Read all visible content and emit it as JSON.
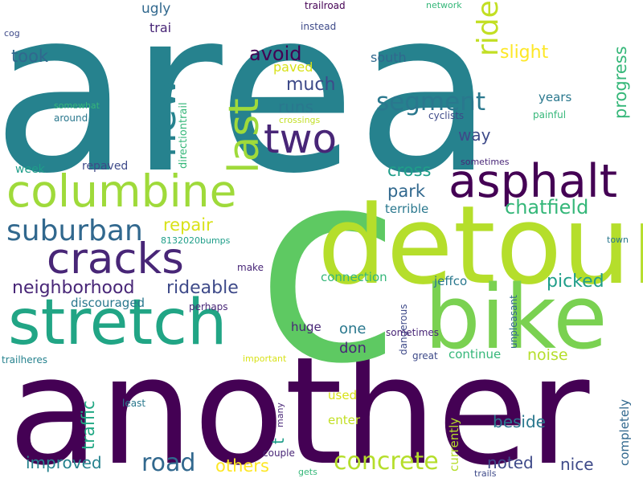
{
  "palette": {
    "dark_purple": "#440154",
    "deep_purple": "#482677",
    "indigo": "#3e4a89",
    "slate_blue": "#31688e",
    "teal_blue": "#26828e",
    "teal": "#1f9e89",
    "green_teal": "#35b779",
    "green": "#6ece58",
    "lime": "#b5de2b",
    "yellow": "#fde725"
  },
  "words": [
    {
      "text": "area",
      "color": "#26828e"
    },
    {
      "text": "another",
      "color": "#440154"
    },
    {
      "text": "c",
      "color": "#5ec962"
    },
    {
      "text": "detour",
      "color": "#b5de2b"
    },
    {
      "text": "bike",
      "color": "#7ad151"
    },
    {
      "text": "stretch",
      "color": "#21a585"
    },
    {
      "text": "two",
      "color": "#482677"
    },
    {
      "text": "asphalt",
      "color": "#440154"
    },
    {
      "text": "columbine",
      "color": "#9fda3a"
    },
    {
      "text": "cracks",
      "color": "#482677"
    },
    {
      "text": "suburban",
      "color": "#31688e"
    },
    {
      "text": "new",
      "color": "#26828e"
    },
    {
      "text": "last",
      "color": "#9fda3a"
    },
    {
      "text": "segment",
      "color": "#2a788e"
    },
    {
      "text": "ride",
      "color": "#c2df23"
    },
    {
      "text": "road",
      "color": "#31688e"
    },
    {
      "text": "concrete",
      "color": "#b5de2b"
    },
    {
      "text": "chatfield",
      "color": "#35b779"
    },
    {
      "text": "neighborhood",
      "color": "#482677"
    },
    {
      "text": "rideable",
      "color": "#3e4a89"
    },
    {
      "text": "avoid",
      "color": "#440154"
    },
    {
      "text": "took",
      "color": "#31688e"
    },
    {
      "text": "much",
      "color": "#3e4a89"
    },
    {
      "text": "runs",
      "color": "#2a788e"
    },
    {
      "text": "slight",
      "color": "#fde725"
    },
    {
      "text": "picked",
      "color": "#1f9e89"
    },
    {
      "text": "cross",
      "color": "#1f9e89"
    },
    {
      "text": "park",
      "color": "#31688e"
    },
    {
      "text": "way",
      "color": "#3e4a89"
    },
    {
      "text": "progress",
      "color": "#35b779"
    },
    {
      "text": "repair",
      "color": "#d8e219"
    },
    {
      "text": "traffic",
      "color": "#22a884"
    },
    {
      "text": "improved",
      "color": "#26828e"
    },
    {
      "text": "others",
      "color": "#fde725"
    },
    {
      "text": "noted",
      "color": "#3e4a89"
    },
    {
      "text": "nice",
      "color": "#3e4a89"
    },
    {
      "text": "beside",
      "color": "#2a788e"
    },
    {
      "text": "noise",
      "color": "#b5de2b"
    },
    {
      "text": "one",
      "color": "#2a788e"
    },
    {
      "text": "don",
      "color": "#482677"
    },
    {
      "text": "ugly",
      "color": "#31688e"
    },
    {
      "text": "trai",
      "color": "#482677"
    },
    {
      "text": "south",
      "color": "#31688e"
    },
    {
      "text": "paved",
      "color": "#d8e219"
    },
    {
      "text": "years",
      "color": "#2a788e"
    },
    {
      "text": "repaved",
      "color": "#3e4a89"
    },
    {
      "text": "week",
      "color": "#1f9e89"
    },
    {
      "text": "discouraged",
      "color": "#2a788e"
    },
    {
      "text": "connection",
      "color": "#35b779"
    },
    {
      "text": "jeffco",
      "color": "#2a788e"
    },
    {
      "text": "terrible",
      "color": "#2a788e"
    },
    {
      "text": "huge",
      "color": "#482677"
    },
    {
      "text": "continue",
      "color": "#35b779"
    },
    {
      "text": "used",
      "color": "#d8e219"
    },
    {
      "text": "enter",
      "color": "#c2df23"
    },
    {
      "text": "currently",
      "color": "#b5de2b"
    },
    {
      "text": "completely",
      "color": "#31688e"
    },
    {
      "text": "t",
      "color": "#1f9e89"
    },
    {
      "text": "directiontrail",
      "color": "#35b779"
    },
    {
      "text": "trailroad",
      "color": "#440154"
    },
    {
      "text": "network",
      "color": "#35b779"
    },
    {
      "text": "instead",
      "color": "#3e4a89"
    },
    {
      "text": "cog",
      "color": "#3e4a89"
    },
    {
      "text": "somewhat",
      "color": "#35b779"
    },
    {
      "text": "around",
      "color": "#2a788e"
    },
    {
      "text": "crossings",
      "color": "#c2df23"
    },
    {
      "text": "cyclists",
      "color": "#3e4a89"
    },
    {
      "text": "painful",
      "color": "#35b779"
    },
    {
      "text": "sometimes",
      "color": "#482677"
    },
    {
      "text": "8132020bumps",
      "color": "#1f9e89"
    },
    {
      "text": "make",
      "color": "#482677"
    },
    {
      "text": "perhaps",
      "color": "#482677"
    },
    {
      "text": "town",
      "color": "#2a788e"
    },
    {
      "text": "unpleasant",
      "color": "#31688e"
    },
    {
      "text": "dangerous",
      "color": "#3e4a89"
    },
    {
      "text": "great",
      "color": "#3e4a89"
    },
    {
      "text": "sometimes2",
      "color": "#482677"
    },
    {
      "text": "trailheres",
      "color": "#26828e"
    },
    {
      "text": "important",
      "color": "#d8e219"
    },
    {
      "text": "least",
      "color": "#2a788e"
    },
    {
      "text": "many",
      "color": "#482677"
    },
    {
      "text": "couple",
      "color": "#482677"
    },
    {
      "text": "gets",
      "color": "#35b779"
    },
    {
      "text": "trails",
      "color": "#3e4a89"
    }
  ]
}
